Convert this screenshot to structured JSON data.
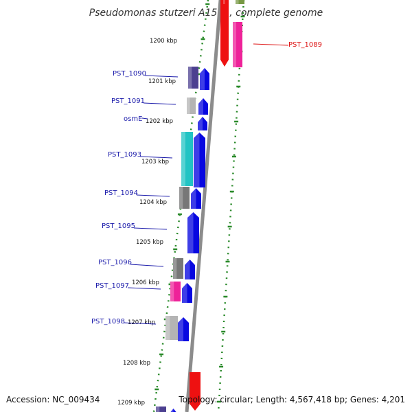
{
  "title": "Pseudomonas stutzeri A1501, complete genome",
  "footer": {
    "accession": "Accession: NC_009434",
    "topology": "Topology: circular; Length: 4,567,418 bp; Genes: 4,201"
  },
  "colors": {
    "backbone": "#8c8c8c",
    "ruler": "#2a8a2a",
    "label_blue": "#1a1aaa",
    "label_red": "#dd1111",
    "cds_blue": "#0808e0",
    "cds_red": "#ee1111",
    "cds_pink": "#ee2299",
    "cds_teal": "#22c4c4",
    "cds_gray": "#777777",
    "cds_lightgray": "#b4b4b4",
    "cds_purple": "#4c4090",
    "cds_green": "#779944"
  },
  "ruler_labels": [
    "1200 kbp",
    "1201 kbp",
    "1202 kbp",
    "1203 kbp",
    "1204 kbp",
    "1205 kbp",
    "1206 kbp",
    "1207 kbp",
    "1208 kbp",
    "1209 kbp"
  ],
  "gene_labels": [
    "PST_1089",
    "PST_1090",
    "PST_1091",
    "osmE",
    "PST_1093",
    "PST_1094",
    "PST_1095",
    "PST_1096",
    "PST_1097",
    "PST_1098"
  ]
}
